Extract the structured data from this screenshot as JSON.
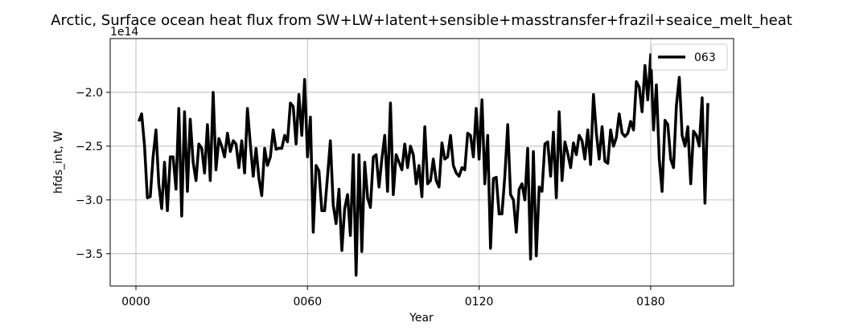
{
  "chart_data": {
    "type": "line",
    "title": "Arctic, Surface ocean heat flux from SW+LW+latent+sensible+masstransfer+frazil+seaice_melt_heat",
    "xlabel": "Year",
    "ylabel": "hfds_int, W",
    "y_offset_label": "1e14",
    "xlim": [
      -9,
      209
    ],
    "ylim": [
      -3.8,
      -1.5
    ],
    "x_ticks": [
      0,
      60,
      120,
      180
    ],
    "x_tick_labels": [
      "0000",
      "0060",
      "0120",
      "0180"
    ],
    "y_ticks": [
      -3.5,
      -3.0,
      -2.5,
      -2.0
    ],
    "y_tick_labels": [
      "−3.5",
      "−3.0",
      "−2.5",
      "−2.0"
    ],
    "grid": true,
    "legend_position": "top-right",
    "series": [
      {
        "name": "063",
        "color": "#000000",
        "x": [
          1,
          2,
          3,
          4,
          5,
          6,
          7,
          8,
          9,
          10,
          11,
          12,
          13,
          14,
          15,
          16,
          17,
          18,
          19,
          20,
          21,
          22,
          23,
          24,
          25,
          26,
          27,
          28,
          29,
          30,
          31,
          32,
          33,
          34,
          35,
          36,
          37,
          38,
          39,
          40,
          41,
          42,
          43,
          44,
          45,
          46,
          47,
          48,
          49,
          50,
          51,
          52,
          53,
          54,
          55,
          56,
          57,
          58,
          59,
          60,
          61,
          62,
          63,
          64,
          65,
          66,
          67,
          68,
          69,
          70,
          71,
          72,
          73,
          74,
          75,
          76,
          77,
          78,
          79,
          80,
          81,
          82,
          83,
          84,
          85,
          86,
          87,
          88,
          89,
          90,
          91,
          92,
          93,
          94,
          95,
          96,
          97,
          98,
          99,
          100,
          101,
          102,
          103,
          104,
          105,
          106,
          107,
          108,
          109,
          110,
          111,
          112,
          113,
          114,
          115,
          116,
          117,
          118,
          119,
          120,
          121,
          122,
          123,
          124,
          125,
          126,
          127,
          128,
          129,
          130,
          131,
          132,
          133,
          134,
          135,
          136,
          137,
          138,
          139,
          140,
          141,
          142,
          143,
          144,
          145,
          146,
          147,
          148,
          149,
          150,
          151,
          152,
          153,
          154,
          155,
          156,
          157,
          158,
          159,
          160,
          161,
          162,
          163,
          164,
          165,
          166,
          167,
          168,
          169,
          170,
          171,
          172,
          173,
          174,
          175,
          176,
          177,
          178,
          179,
          180,
          181,
          182,
          183,
          184,
          185,
          186,
          187,
          188,
          189,
          190,
          191,
          192,
          193,
          194,
          195,
          196,
          197,
          198,
          199,
          200
        ],
        "values": [
          -2.27,
          -2.2,
          -2.5,
          -2.98,
          -2.97,
          -2.6,
          -2.35,
          -2.85,
          -3.08,
          -2.65,
          -3.1,
          -2.6,
          -2.6,
          -2.9,
          -2.15,
          -3.15,
          -2.18,
          -2.92,
          -2.25,
          -2.65,
          -2.82,
          -2.48,
          -2.52,
          -2.75,
          -2.3,
          -2.82,
          -2.0,
          -2.72,
          -2.43,
          -2.5,
          -2.6,
          -2.38,
          -2.55,
          -2.45,
          -2.48,
          -2.7,
          -2.45,
          -2.75,
          -2.15,
          -2.48,
          -2.78,
          -2.52,
          -2.8,
          -2.96,
          -2.52,
          -2.68,
          -2.6,
          -2.35,
          -2.53,
          -2.52,
          -2.52,
          -2.4,
          -2.46,
          -2.1,
          -2.13,
          -2.48,
          -2.02,
          -2.4,
          -1.88,
          -2.6,
          -2.23,
          -3.3,
          -2.68,
          -2.73,
          -3.1,
          -3.1,
          -2.78,
          -2.45,
          -3.05,
          -3.22,
          -2.9,
          -3.47,
          -3.08,
          -2.95,
          -3.33,
          -2.58,
          -3.7,
          -2.58,
          -3.48,
          -2.65,
          -2.98,
          -3.07,
          -2.6,
          -2.58,
          -2.88,
          -2.62,
          -2.4,
          -2.92,
          -2.1,
          -2.95,
          -2.58,
          -2.65,
          -2.72,
          -2.48,
          -2.7,
          -2.5,
          -2.58,
          -2.85,
          -2.68,
          -2.97,
          -2.32,
          -2.85,
          -2.82,
          -2.62,
          -2.82,
          -2.88,
          -2.47,
          -2.62,
          -2.6,
          -2.4,
          -2.68,
          -2.75,
          -2.78,
          -2.7,
          -2.72,
          -2.38,
          -2.4,
          -2.6,
          -2.15,
          -2.62,
          -2.07,
          -2.85,
          -2.4,
          -3.45,
          -2.8,
          -2.79,
          -3.13,
          -3.13,
          -2.78,
          -2.3,
          -2.95,
          -3.0,
          -3.3,
          -2.9,
          -2.85,
          -3.0,
          -2.52,
          -3.55,
          -2.55,
          -3.52,
          -2.88,
          -2.92,
          -2.48,
          -2.46,
          -2.78,
          -2.37,
          -2.98,
          -2.18,
          -2.82,
          -2.46,
          -2.57,
          -2.7,
          -2.47,
          -2.58,
          -2.4,
          -2.45,
          -2.62,
          -2.35,
          -2.67,
          -2.02,
          -2.38,
          -2.62,
          -2.32,
          -2.64,
          -2.66,
          -2.35,
          -2.5,
          -2.42,
          -2.2,
          -2.38,
          -2.41,
          -2.38,
          -2.27,
          -2.35,
          -1.9,
          -1.95,
          -2.18,
          -1.75,
          -2.07,
          -1.65,
          -2.35,
          -1.93,
          -2.62,
          -2.92,
          -2.26,
          -2.3,
          -2.62,
          -2.7,
          -2.12,
          -1.86,
          -2.4,
          -2.5,
          -2.32,
          -2.85,
          -2.36,
          -2.4,
          -2.5,
          -2.05,
          -3.03,
          -2.1
        ]
      }
    ]
  }
}
